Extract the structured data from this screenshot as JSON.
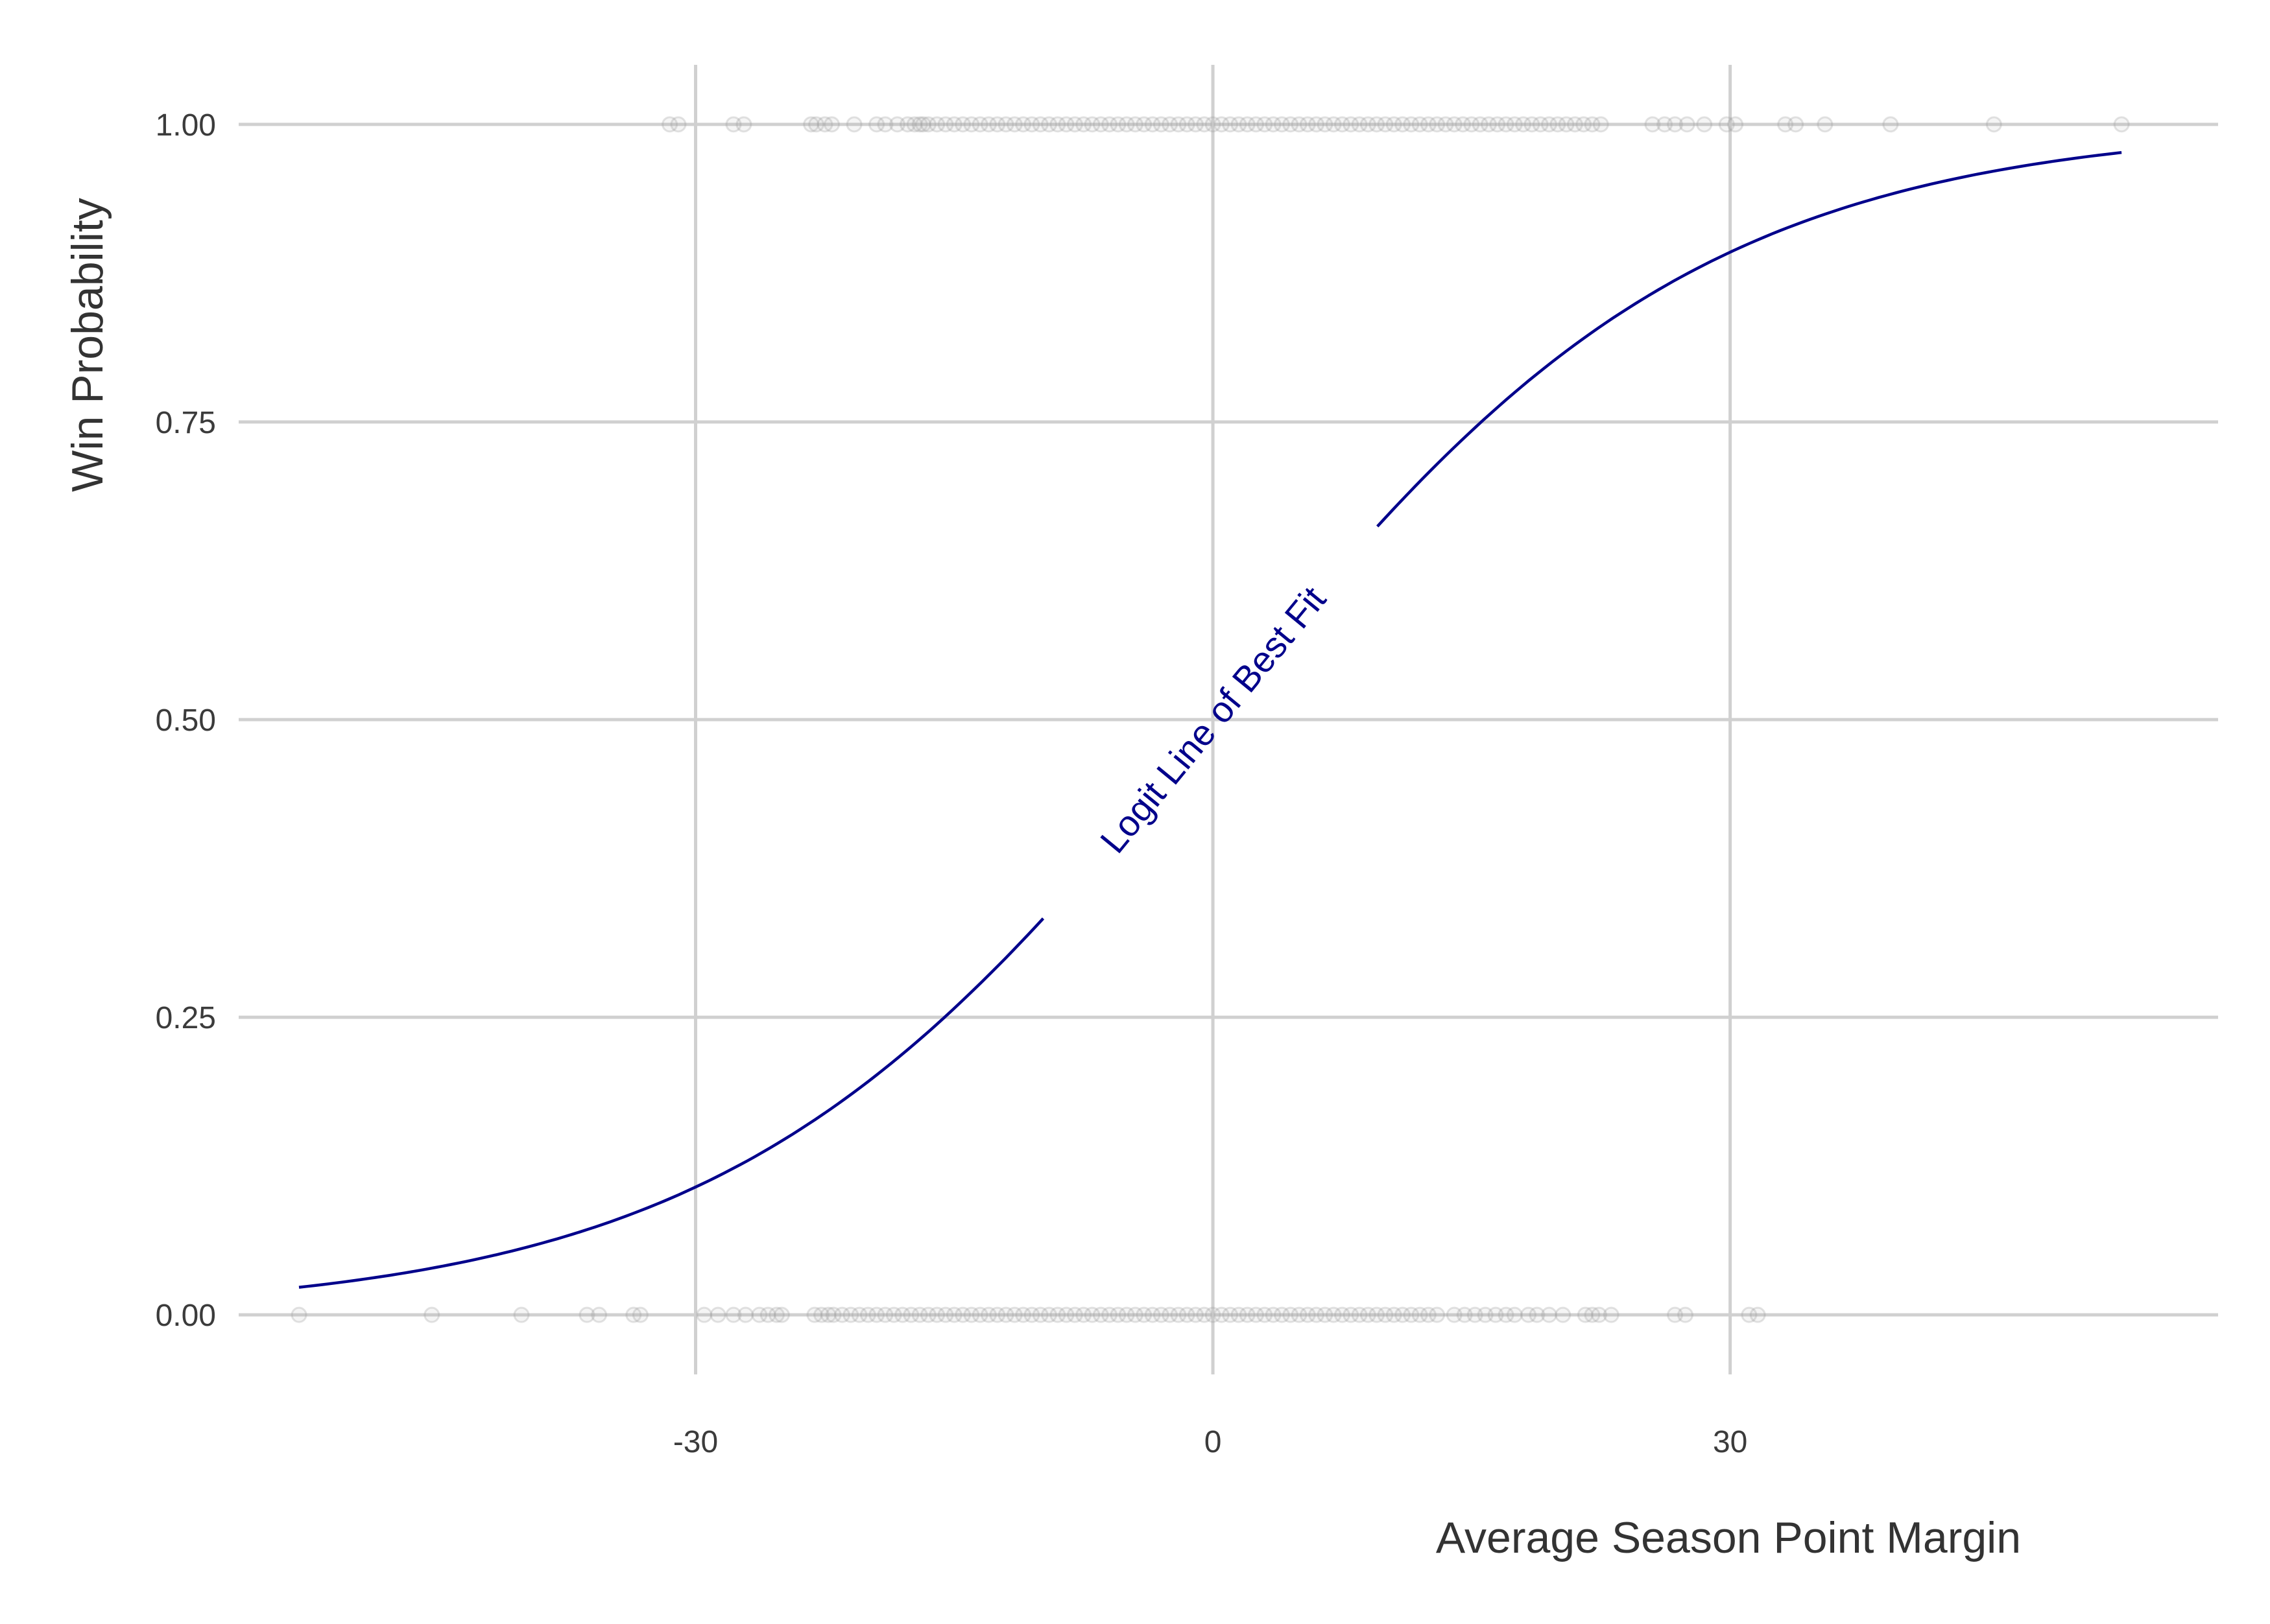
{
  "chart_data": {
    "type": "scatter",
    "title": "",
    "xlabel": "Average Season Point Margin",
    "ylabel": "Win Probability",
    "xlim": [
      -56.5,
      58.3
    ],
    "ylim": [
      -0.05,
      1.05
    ],
    "x_ticks": [
      -30,
      0,
      30
    ],
    "x_tick_labels": [
      "-30",
      "0",
      "30"
    ],
    "y_ticks": [
      0,
      0.25,
      0.5,
      0.75,
      1.0
    ],
    "y_tick_labels": [
      "0.00",
      "0.25",
      "0.50",
      "0.75",
      "1.00"
    ],
    "grid": true,
    "legend": "none",
    "colors": {
      "points": "#a9a9a9",
      "curve": "#00008b",
      "grid": "#d0d0d0",
      "text": "#3b3b3b"
    },
    "series": [
      {
        "kind": "points",
        "y_value": 1,
        "x": [
          -31.5,
          -31,
          -27.8,
          -27.2,
          -23.3,
          -23,
          -22.5,
          -22.1,
          -20.8,
          -19.5,
          -19,
          -18.3,
          -17.7,
          -17.3,
          -17,
          -16.8,
          -16.5,
          -16,
          -15.5,
          -15,
          -14.5,
          -14,
          -13.5,
          -13,
          -12.5,
          -12,
          -11.5,
          -11,
          -10.5,
          -10,
          -9.5,
          -9,
          -8.5,
          -8,
          -7.5,
          -7,
          -6.5,
          -6,
          -5.5,
          -5,
          -4.5,
          -4,
          -3.5,
          -3,
          -2.5,
          -2,
          -1.5,
          -1,
          -0.5,
          0,
          0.5,
          1,
          1.5,
          2,
          2.5,
          3,
          3.5,
          4,
          4.5,
          5,
          5.5,
          6,
          6.5,
          7,
          7.5,
          8,
          8.5,
          9,
          9.5,
          10,
          10.5,
          11,
          11.5,
          12,
          12.5,
          13,
          13.5,
          14,
          14.5,
          15,
          15.5,
          16,
          16.5,
          17,
          17.5,
          18,
          18.5,
          19,
          19.5,
          20,
          20.5,
          21,
          21.5,
          22,
          22.5,
          25.5,
          26.2,
          26.8,
          27.5,
          28.5,
          29.8,
          30.3,
          33.2,
          33.8,
          35.5,
          39.3,
          45.3,
          52.7
        ]
      },
      {
        "kind": "points",
        "y_value": 0,
        "x": [
          -53,
          -45.3,
          -40.1,
          -36.3,
          -35.6,
          -33.6,
          -33.2,
          -29.5,
          -28.7,
          -27.8,
          -27.1,
          -26.3,
          -25.8,
          -25.3,
          -25,
          -23.1,
          -22.7,
          -22.3,
          -22,
          -21.5,
          -21,
          -20.5,
          -20,
          -19.5,
          -19,
          -18.5,
          -18,
          -17.5,
          -17,
          -16.5,
          -16,
          -15.5,
          -15,
          -14.5,
          -14,
          -13.5,
          -13,
          -12.5,
          -12,
          -11.5,
          -11,
          -10.5,
          -10,
          -9.5,
          -9,
          -8.5,
          -8,
          -7.5,
          -7,
          -6.5,
          -6,
          -5.5,
          -5,
          -4.5,
          -4,
          -3.5,
          -3,
          -2.5,
          -2,
          -1.5,
          -1,
          -0.5,
          0,
          0.5,
          1,
          1.5,
          2,
          2.5,
          3,
          3.5,
          4,
          4.5,
          5,
          5.5,
          6,
          6.5,
          7,
          7.5,
          8,
          8.5,
          9,
          9.5,
          10,
          10.5,
          11,
          11.5,
          12,
          12.5,
          13,
          14,
          14.6,
          15.2,
          15.8,
          16.4,
          17,
          17.5,
          18.3,
          18.8,
          19.5,
          20.3,
          21.6,
          22,
          22.4,
          23.1,
          26.8,
          27.4,
          31.1,
          31.6
        ]
      },
      {
        "kind": "curve",
        "name": "Logit Line of Best Fit",
        "model": "logistic",
        "intercept": 0,
        "slope": 0.0706,
        "x_range": [
          -53,
          52.7
        ]
      }
    ],
    "annotations": [
      {
        "text": "Logit Line of Best Fit",
        "x": 0,
        "y": 0.5,
        "follows_curve": true
      }
    ]
  }
}
